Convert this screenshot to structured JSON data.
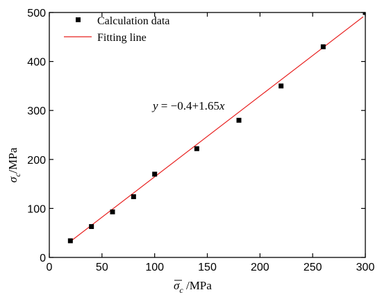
{
  "chart_data": {
    "type": "scatter",
    "xlim": [
      0,
      300
    ],
    "ylim": [
      0,
      500
    ],
    "x_ticks": [
      0,
      50,
      100,
      150,
      200,
      250,
      300
    ],
    "y_ticks": [
      0,
      100,
      200,
      300,
      400,
      500
    ],
    "x_tick_labels": [
      "0",
      "50",
      "100",
      "150",
      "200",
      "250",
      "300"
    ],
    "y_tick_labels": [
      "0",
      "100",
      "200",
      "300",
      "400",
      "500"
    ],
    "xlabel": {
      "symbol": "σ",
      "subscript": "c",
      "unit": " /MPa"
    },
    "ylabel": {
      "symbol": "σ",
      "subscript": "c",
      "unit": "/MPa"
    },
    "grid": false,
    "legend_position": "top-left",
    "series": [
      {
        "name": "Calculation data",
        "kind": "points",
        "marker": "square",
        "color": "#000000",
        "x": [
          20,
          40,
          60,
          80,
          100,
          140,
          180,
          220,
          260,
          300
        ],
        "y": [
          34,
          63,
          93,
          124,
          170,
          222,
          280,
          350,
          430,
          500
        ]
      },
      {
        "name": "Fitting line",
        "kind": "line",
        "color": "#e8201f",
        "intercept": -0.4,
        "slope": 1.65,
        "x_range": [
          20,
          298
        ]
      }
    ],
    "annotation": {
      "y_var": "y",
      "equals": " = ",
      "intercept_text": "−0.4+1.65",
      "x_var": "x"
    }
  }
}
